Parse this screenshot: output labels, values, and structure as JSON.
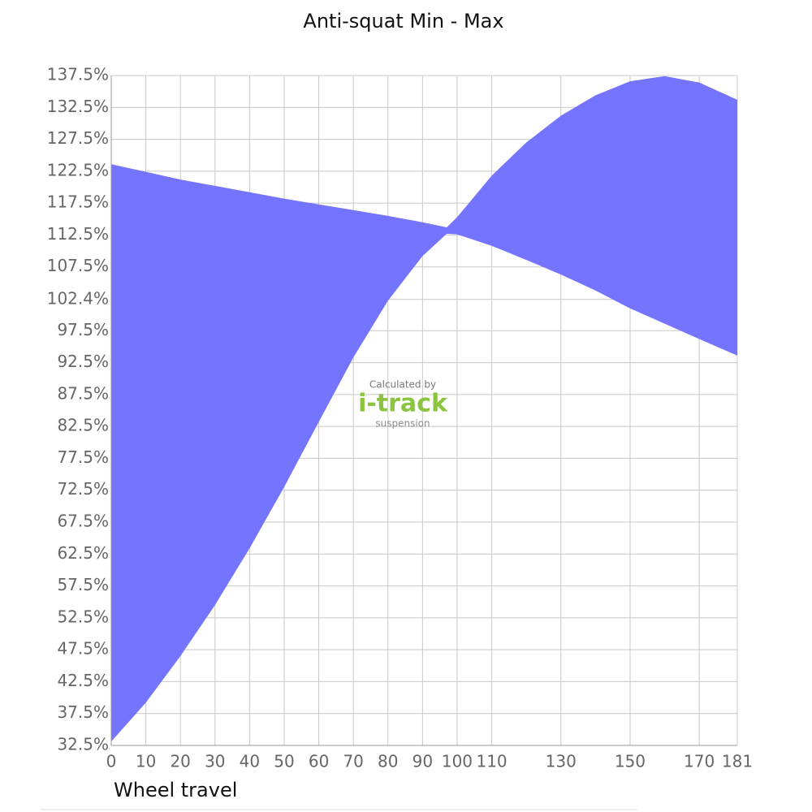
{
  "chart_data": {
    "type": "range_area",
    "title": "Anti-squat Min - Max",
    "x_label": "Wheel travel",
    "color": "#7070ff",
    "x": [
      0,
      10,
      20,
      30,
      40,
      50,
      60,
      70,
      80,
      90,
      97,
      100,
      110,
      120,
      130,
      140,
      150,
      160,
      170,
      181
    ],
    "upper": [
      123.6,
      122.4,
      121.2,
      120.2,
      119.2,
      118.2,
      117.3,
      116.4,
      115.5,
      114.5,
      113.7,
      115.3,
      121.8,
      127.0,
      131.2,
      134.4,
      136.6,
      137.4,
      136.4,
      133.7
    ],
    "lower": [
      33.1,
      39.2,
      46.5,
      54.5,
      63.4,
      73.0,
      83.2,
      93.3,
      102.2,
      109.2,
      112.7,
      112.6,
      110.8,
      108.6,
      106.3,
      103.8,
      101.0,
      98.6,
      96.2,
      93.6
    ],
    "xlim": [
      0,
      181
    ],
    "xticks": [
      0,
      10,
      20,
      30,
      40,
      50,
      60,
      70,
      80,
      90,
      100,
      110,
      130,
      150,
      170,
      181
    ],
    "ylim": [
      32.5,
      137.5
    ],
    "yticks": [
      {
        "value": 32.5,
        "label": "32.5%"
      },
      {
        "value": 37.5,
        "label": "37.5%"
      },
      {
        "value": 42.5,
        "label": "42.5%"
      },
      {
        "value": 47.5,
        "label": "47.5%"
      },
      {
        "value": 52.5,
        "label": "52.5%"
      },
      {
        "value": 57.5,
        "label": "57.5%"
      },
      {
        "value": 62.5,
        "label": "62.5%"
      },
      {
        "value": 67.5,
        "label": "67.5%"
      },
      {
        "value": 72.5,
        "label": "72.5%"
      },
      {
        "value": 77.5,
        "label": "77.5%"
      },
      {
        "value": 82.5,
        "label": "82.5%"
      },
      {
        "value": 87.5,
        "label": "87.5%"
      },
      {
        "value": 92.5,
        "label": "92.5%"
      },
      {
        "value": 97.5,
        "label": "97.5%"
      },
      {
        "value": 102.4,
        "label": "102.4%"
      },
      {
        "value": 107.5,
        "label": "107.5%"
      },
      {
        "value": 112.5,
        "label": "112.5%"
      },
      {
        "value": 117.5,
        "label": "117.5%"
      },
      {
        "value": 122.5,
        "label": "122.5%"
      },
      {
        "value": 127.5,
        "label": "127.5%"
      },
      {
        "value": 132.5,
        "label": "132.5%"
      },
      {
        "value": 137.5,
        "label": "137.5%"
      }
    ],
    "grid": true,
    "watermark": {
      "top": "Calculated by",
      "brand": "i-track",
      "bottom": "suspension"
    }
  }
}
